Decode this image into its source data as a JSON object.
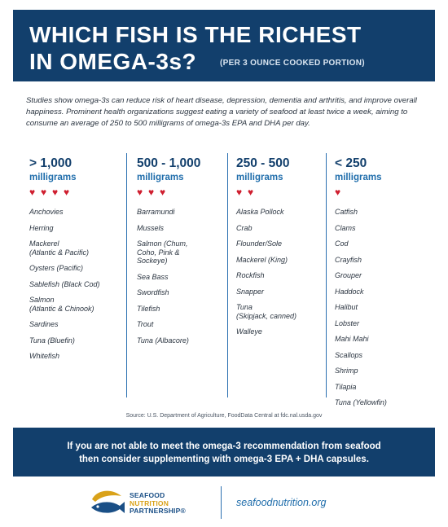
{
  "header": {
    "title_line1": "WHICH FISH IS THE RICHEST",
    "title_line2": "IN OMEGA-3s?",
    "subtitle": "(PER 3 OUNCE COOKED PORTION)"
  },
  "intro": "Studies show omega-3s can reduce risk of heart disease, depression, dementia and arthritis, and improve overall happiness. Prominent health organizations suggest eating a variety of seafood at least twice a week, aiming to consume an average of 250 to 500 milligrams of omega-3s EPA and DHA per day.",
  "columns": [
    {
      "range": "> 1,000",
      "unit": "milligrams",
      "hearts": 4,
      "items": [
        "Anchovies",
        "Herring",
        "Mackerel\n(Atlantic & Pacific)",
        "Oysters (Pacific)",
        "Sablefish (Black Cod)",
        "Salmon\n(Atlantic & Chinook)",
        "Sardines",
        "Tuna (Bluefin)",
        "Whitefish"
      ]
    },
    {
      "range": "500 - 1,000",
      "unit": "milligrams",
      "hearts": 3,
      "items": [
        "Barramundi",
        "Mussels",
        "Salmon (Chum,\nCoho, Pink &\nSockeye)",
        "Sea Bass",
        "Swordfish",
        "Tilefish",
        "Trout",
        "Tuna (Albacore)"
      ]
    },
    {
      "range": "250 - 500",
      "unit": "milligrams",
      "hearts": 2,
      "items": [
        "Alaska Pollock",
        "Crab",
        "Flounder/Sole",
        "Mackerel (King)",
        "Rockfish",
        "Snapper",
        "Tuna\n(Skipjack, canned)",
        "Walleye"
      ]
    },
    {
      "range": "< 250",
      "unit": "milligrams",
      "hearts": 1,
      "items": [
        "Catfish",
        "Clams",
        "Cod",
        "Crayfish",
        "Grouper",
        "Haddock",
        "Halibut",
        "Lobster",
        "Mahi Mahi",
        "Scallops",
        "Shrimp",
        "Tilapia",
        "Tuna (Yellowfin)"
      ]
    }
  ],
  "source": "Source: U.S. Department of Agriculture, FoodData Central at fdc.nal.usda.gov",
  "banner": "If you are not able to meet the omega-3 recommendation from seafood\nthen consider supplementing with omega-3 EPA + DHA capsules.",
  "logo": {
    "line1": "SEAFOOD",
    "line2": "NUTRITION",
    "line3": "PARTNERSHIP®",
    "url": "seafoodnutrition.org"
  },
  "colors": {
    "navy": "#123f6c",
    "accent_blue": "#1f6dab",
    "heart_red": "#cf1e2f",
    "logo_gold": "#d9a21a"
  }
}
